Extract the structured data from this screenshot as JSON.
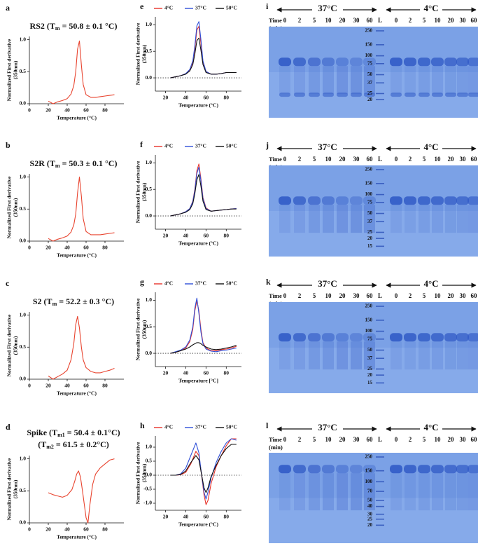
{
  "chart_data": [
    {
      "type": "line",
      "panel": "a",
      "title": [
        [
          "RS2 (T",
          "m",
          " = 50.8 ± 0.1 °C)"
        ]
      ],
      "ylabel": [
        "Normalized First derivative",
        "(350nm)"
      ],
      "xlabel": "Temperature (°C)",
      "x": [
        20,
        25,
        30,
        35,
        40,
        44,
        47,
        49,
        51,
        53,
        55,
        57,
        60,
        65,
        70,
        75,
        80,
        85,
        90
      ],
      "series": [
        {
          "color": "#e8432e",
          "values": [
            0.04,
            0.0,
            0.03,
            0.05,
            0.08,
            0.15,
            0.28,
            0.5,
            0.85,
            0.98,
            0.6,
            0.3,
            0.14,
            0.1,
            0.1,
            0.11,
            0.12,
            0.13,
            0.14
          ]
        }
      ],
      "xlim": [
        0,
        100
      ],
      "xticks": [
        0,
        20,
        40,
        60,
        80
      ],
      "ylim": [
        0,
        1.05
      ],
      "yticks": [
        {
          "value": 0,
          "label": "0.0"
        },
        {
          "value": 0.5,
          "label": "0.5"
        },
        {
          "value": 1,
          "label": "1.0"
        }
      ]
    },
    {
      "type": "line",
      "panel": "b",
      "title": [
        [
          "S2R (T",
          "m",
          " = 50.3 ± 0.1 °C)"
        ]
      ],
      "ylabel": [
        "Normalized First derivative",
        "(350nm)"
      ],
      "xlabel": "Temperature (°C)",
      "x": [
        20,
        25,
        30,
        35,
        40,
        44,
        47,
        49,
        51,
        53,
        55,
        57,
        60,
        65,
        70,
        75,
        80,
        85,
        90
      ],
      "series": [
        {
          "color": "#e8432e",
          "values": [
            0.04,
            0.0,
            0.03,
            0.05,
            0.08,
            0.14,
            0.25,
            0.42,
            0.75,
            1.0,
            0.7,
            0.35,
            0.15,
            0.1,
            0.1,
            0.1,
            0.11,
            0.12,
            0.13
          ]
        }
      ],
      "xlim": [
        0,
        100
      ],
      "xticks": [
        0,
        20,
        40,
        60,
        80
      ],
      "ylim": [
        0,
        1.05
      ],
      "yticks": [
        {
          "value": 0,
          "label": "0.0"
        },
        {
          "value": 0.5,
          "label": "0.5"
        },
        {
          "value": 1,
          "label": "1.0"
        }
      ]
    },
    {
      "type": "line",
      "panel": "c",
      "title": [
        [
          "S2 (T",
          "m",
          " = 52.2 ± 0.3 °C)"
        ]
      ],
      "ylabel": [
        "Normalized First derivative",
        "(350nm)"
      ],
      "xlabel": "Temperature (°C)",
      "x": [
        20,
        25,
        30,
        35,
        40,
        44,
        47,
        49,
        51,
        53,
        55,
        57,
        60,
        65,
        70,
        75,
        80,
        85,
        90
      ],
      "series": [
        {
          "color": "#e8432e",
          "values": [
            0.05,
            0.0,
            0.04,
            0.08,
            0.14,
            0.3,
            0.55,
            0.85,
            0.98,
            0.8,
            0.5,
            0.3,
            0.18,
            0.12,
            0.1,
            0.1,
            0.12,
            0.14,
            0.17
          ]
        }
      ],
      "xlim": [
        0,
        100
      ],
      "xticks": [
        0,
        20,
        40,
        60,
        80
      ],
      "ylim": [
        0,
        1.05
      ],
      "yticks": [
        {
          "value": 0,
          "label": "0.0"
        },
        {
          "value": 0.5,
          "label": "0.5"
        },
        {
          "value": 1,
          "label": "1.0"
        }
      ]
    },
    {
      "type": "line",
      "panel": "d",
      "title": [
        [
          "Spike (T",
          "m1",
          " = 50.4 ± 0.1°C)"
        ],
        [
          "(T",
          "m2",
          " = 61.5 ± 0.2°C)"
        ]
      ],
      "ylabel": [
        "Normalized First derivative",
        "(350nm)"
      ],
      "xlabel": "Temperature (°C)",
      "x": [
        20,
        25,
        30,
        35,
        40,
        45,
        48,
        50,
        52,
        54,
        56,
        58,
        60,
        62,
        64,
        67,
        70,
        75,
        80,
        85,
        90
      ],
      "series": [
        {
          "color": "#e8432e",
          "values": [
            0.47,
            0.44,
            0.42,
            0.4,
            0.43,
            0.52,
            0.65,
            0.76,
            0.81,
            0.72,
            0.52,
            0.3,
            0.08,
            0.0,
            0.28,
            0.6,
            0.76,
            0.86,
            0.92,
            0.98,
            1.0
          ]
        }
      ],
      "xlim": [
        0,
        100
      ],
      "xticks": [
        0,
        20,
        40,
        60,
        80
      ],
      "ylim": [
        0,
        1.05
      ],
      "yticks": [
        {
          "value": 0,
          "label": "0.0"
        },
        {
          "value": 0.5,
          "label": "0.5"
        },
        {
          "value": 1,
          "label": "1.0"
        }
      ]
    },
    {
      "type": "line",
      "panel": "e",
      "ylabel": [
        "Normalized First derivative",
        "(350nm)"
      ],
      "xlabel": "Temperature (°C)",
      "zero_line": true,
      "x": [
        25,
        30,
        35,
        40,
        44,
        47,
        49,
        51,
        53,
        55,
        57,
        60,
        65,
        70,
        75,
        80,
        85,
        90
      ],
      "series": [
        {
          "name": "4°C",
          "color": "#e8332a",
          "values": [
            0.0,
            0.02,
            0.04,
            0.08,
            0.15,
            0.3,
            0.55,
            0.9,
            0.97,
            0.65,
            0.3,
            0.12,
            0.07,
            0.07,
            0.08,
            0.1,
            0.1,
            0.1
          ]
        },
        {
          "name": "37°C",
          "color": "#2f4fd8",
          "values": [
            0.0,
            0.02,
            0.04,
            0.08,
            0.16,
            0.32,
            0.6,
            0.98,
            1.06,
            0.72,
            0.32,
            0.12,
            0.07,
            0.07,
            0.08,
            0.1,
            0.1,
            0.1
          ]
        },
        {
          "name": "50°C",
          "color": "#111111",
          "values": [
            0.0,
            0.02,
            0.04,
            0.07,
            0.13,
            0.25,
            0.45,
            0.7,
            0.75,
            0.52,
            0.25,
            0.1,
            0.07,
            0.07,
            0.08,
            0.1,
            0.1,
            0.1
          ]
        }
      ],
      "xlim": [
        10,
        95
      ],
      "xticks": [
        20,
        40,
        60,
        80
      ],
      "ylim": [
        -0.25,
        1.15
      ],
      "yticks": [
        {
          "value": 0,
          "label": "0.0"
        },
        {
          "value": 0.5,
          "label": "0.5"
        },
        {
          "value": 1,
          "label": "1.0"
        }
      ]
    },
    {
      "type": "line",
      "panel": "f",
      "ylabel": [
        "Normalized First derivative",
        "(350nm)"
      ],
      "xlabel": "Temperature (°C)",
      "zero_line": true,
      "x": [
        25,
        30,
        35,
        40,
        44,
        47,
        49,
        51,
        53,
        55,
        57,
        60,
        65,
        70,
        75,
        80,
        85,
        90
      ],
      "series": [
        {
          "name": "4°C",
          "color": "#e8332a",
          "values": [
            0.0,
            0.02,
            0.04,
            0.08,
            0.14,
            0.28,
            0.5,
            0.85,
            0.98,
            0.7,
            0.35,
            0.15,
            0.09,
            0.1,
            0.11,
            0.12,
            0.13,
            0.14
          ]
        },
        {
          "name": "37°C",
          "color": "#2f4fd8",
          "values": [
            0.0,
            0.02,
            0.04,
            0.08,
            0.14,
            0.27,
            0.48,
            0.8,
            0.92,
            0.66,
            0.33,
            0.14,
            0.09,
            0.1,
            0.11,
            0.12,
            0.13,
            0.14
          ]
        },
        {
          "name": "50°C",
          "color": "#111111",
          "values": [
            0.0,
            0.02,
            0.04,
            0.07,
            0.12,
            0.23,
            0.42,
            0.68,
            0.78,
            0.56,
            0.28,
            0.12,
            0.09,
            0.1,
            0.11,
            0.12,
            0.13,
            0.13
          ]
        }
      ],
      "xlim": [
        10,
        95
      ],
      "xticks": [
        20,
        40,
        60,
        80
      ],
      "ylim": [
        -0.25,
        1.15
      ],
      "yticks": [
        {
          "value": 0,
          "label": "0.0"
        },
        {
          "value": 0.5,
          "label": "0.5"
        },
        {
          "value": 1,
          "label": "1.0"
        }
      ]
    },
    {
      "type": "line",
      "panel": "g",
      "ylabel": [
        "Normalized First derivative",
        "(350nm)"
      ],
      "xlabel": "Temperature [°C]",
      "zero_line": true,
      "x": [
        25,
        30,
        35,
        40,
        44,
        47,
        49,
        51,
        53,
        55,
        57,
        60,
        65,
        70,
        75,
        80,
        85,
        90
      ],
      "series": [
        {
          "name": "4°C",
          "color": "#e8332a",
          "values": [
            0.0,
            0.02,
            0.05,
            0.1,
            0.22,
            0.45,
            0.8,
            0.99,
            0.8,
            0.45,
            0.2,
            0.1,
            0.05,
            0.05,
            0.07,
            0.08,
            0.1,
            0.13
          ]
        },
        {
          "name": "37°C",
          "color": "#2f4fd8",
          "values": [
            0.0,
            0.03,
            0.06,
            0.12,
            0.25,
            0.5,
            0.85,
            1.04,
            0.75,
            0.4,
            0.18,
            0.08,
            0.04,
            0.03,
            0.05,
            0.06,
            0.08,
            0.1
          ]
        },
        {
          "name": "50°C",
          "color": "#111111",
          "values": [
            0.0,
            0.02,
            0.05,
            0.08,
            0.12,
            0.16,
            0.18,
            0.2,
            0.2,
            0.18,
            0.15,
            0.12,
            0.08,
            0.07,
            0.08,
            0.1,
            0.12,
            0.15
          ]
        }
      ],
      "xlim": [
        10,
        95
      ],
      "xticks": [
        20,
        40,
        60,
        80
      ],
      "ylim": [
        -0.25,
        1.15
      ],
      "yticks": [
        {
          "value": 0,
          "label": "0.0"
        },
        {
          "value": 0.5,
          "label": "0.5"
        },
        {
          "value": 1,
          "label": "1.0"
        }
      ]
    },
    {
      "type": "line",
      "panel": "h",
      "ylabel": [
        "Normalized First derivative",
        "(350nm)"
      ],
      "xlabel": "Temperature (°C)",
      "zero_line": true,
      "x": [
        25,
        30,
        35,
        40,
        45,
        50,
        53,
        55,
        58,
        60,
        62,
        65,
        70,
        75,
        80,
        85,
        90
      ],
      "series": [
        {
          "name": "4°C",
          "color": "#e8332a",
          "values": [
            0,
            0,
            0.02,
            0.1,
            0.4,
            0.85,
            0.7,
            0.2,
            -0.7,
            -1.05,
            -0.9,
            -0.3,
            0.3,
            0.7,
            1.05,
            1.3,
            1.3
          ]
        },
        {
          "name": "37°C",
          "color": "#2f4fd8",
          "values": [
            0,
            0,
            0.05,
            0.25,
            0.7,
            1.15,
            0.8,
            0.2,
            -0.6,
            -0.85,
            -0.6,
            -0.1,
            0.45,
            0.85,
            1.15,
            1.3,
            1.25
          ]
        },
        {
          "name": "50°C",
          "color": "#111111",
          "values": [
            0,
            0,
            0.03,
            0.15,
            0.45,
            0.7,
            0.55,
            0.15,
            -0.45,
            -0.62,
            -0.45,
            -0.05,
            0.35,
            0.7,
            0.95,
            1.1,
            1.1
          ]
        }
      ],
      "xlim": [
        10,
        95
      ],
      "xticks": [
        20,
        40,
        60,
        80
      ],
      "ylim": [
        -1.25,
        1.4
      ],
      "yticks": [
        {
          "value": -1,
          "label": "-1.0"
        },
        {
          "value": -0.5,
          "label": "-0.5"
        },
        {
          "value": 0,
          "label": "0.0"
        },
        {
          "value": 0.5,
          "label": "0.5"
        },
        {
          "value": 1,
          "label": "1.0"
        }
      ]
    }
  ],
  "gel_labels": {
    "left": "37°C",
    "right": "4°C",
    "time": "Time",
    "unit": "(min)",
    "lanes": [
      "0",
      "2",
      "5",
      "10",
      "20",
      "30",
      "60",
      "L",
      "0",
      "2",
      "5",
      "10",
      "20",
      "30",
      "60"
    ]
  },
  "gels": [
    {
      "panel": "i",
      "ladder": [
        250,
        150,
        100,
        75,
        50,
        37,
        25,
        20
      ]
    },
    {
      "panel": "j",
      "ladder": [
        250,
        150,
        100,
        75,
        50,
        37,
        25,
        20,
        15
      ]
    },
    {
      "panel": "k",
      "ladder": [
        250,
        150,
        100,
        75,
        50,
        37,
        25,
        20,
        15
      ]
    },
    {
      "panel": "l",
      "ladder": [
        250,
        150,
        100,
        70,
        50,
        40,
        30,
        25,
        20
      ]
    }
  ]
}
